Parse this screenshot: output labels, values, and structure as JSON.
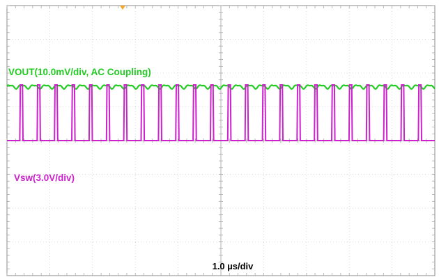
{
  "chart_data": {
    "type": "line",
    "title": "",
    "xlabel": "1.0 µs/div",
    "ylabel": "",
    "grid": true,
    "divisions": {
      "horizontal": 10,
      "vertical": 8
    },
    "trigger_marker_color": "#f5a623",
    "series": [
      {
        "name": "VOUT(10.0mV/div, AC Coupling)",
        "color": "#22cc22",
        "waveform": "ripple",
        "baseline_div": 1.6,
        "amplitude_div": 0.05,
        "ripple_period_div": 0.28
      },
      {
        "name": "Vsw(3.0V/div)",
        "color": "#cc22cc",
        "waveform": "pulse",
        "baseline_div": 0.0,
        "high_div": 1.65,
        "period_div": 0.405,
        "pulse_width_div": 0.075,
        "first_edge_div": 0.3
      }
    ]
  }
}
